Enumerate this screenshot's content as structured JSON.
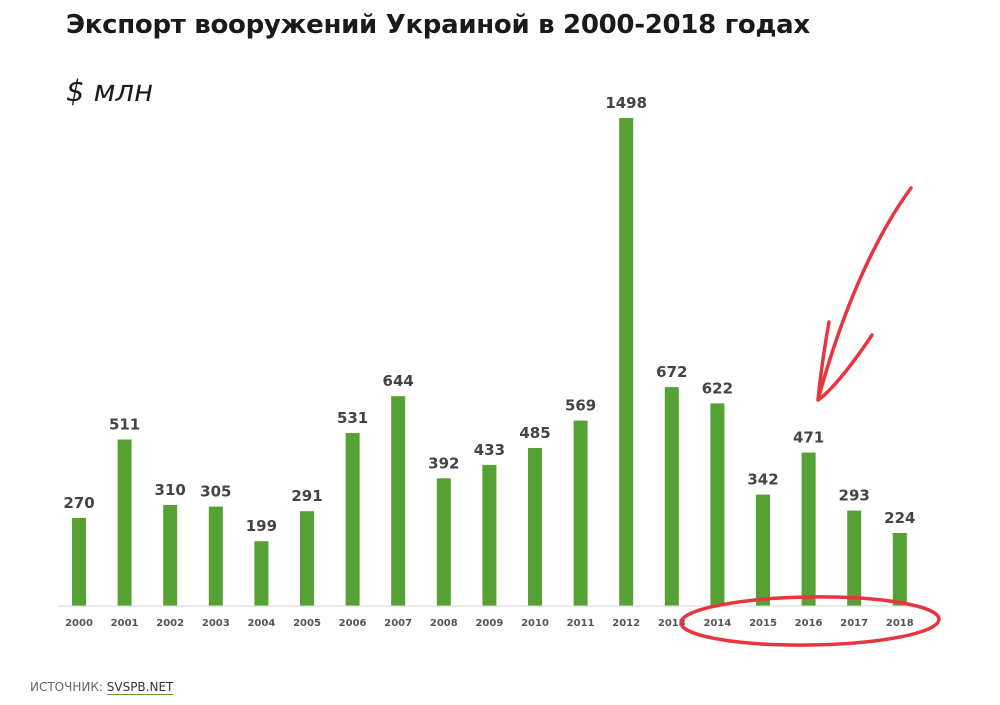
{
  "chart_data": {
    "type": "bar",
    "title": "Экспорт вооружений Украиной в 2000-2018 годах",
    "unit": "$ млн",
    "categories": [
      "2000",
      "2001",
      "2002",
      "2003",
      "2004",
      "2005",
      "2006",
      "2007",
      "2008",
      "2009",
      "2010",
      "2011",
      "2012",
      "2013",
      "2014",
      "2015",
      "2016",
      "2017",
      "2018"
    ],
    "values": [
      270,
      511,
      310,
      305,
      199,
      291,
      531,
      644,
      392,
      433,
      485,
      569,
      1498,
      672,
      622,
      342,
      471,
      293,
      224
    ],
    "ylim": [
      0,
      1498
    ],
    "grid": false,
    "legend": "none",
    "bar_color": "#55a133"
  },
  "annotations": {
    "highlight_color": "#e8353f",
    "highlighted_categories": [
      "2014",
      "2015",
      "2016",
      "2017",
      "2018"
    ]
  },
  "source": {
    "label": "ИСТОЧНИК:",
    "link_text": "SVSPB.NET"
  }
}
